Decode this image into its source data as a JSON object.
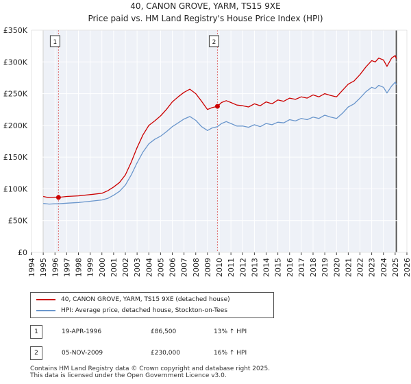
{
  "title_line1": "40, CANON GROVE, YARM, TS15 9XE",
  "title_line2": "Price paid vs. HM Land Registry's House Price Index (HPI)",
  "chart_data": {
    "type": "line",
    "xlim": [
      1994,
      2026
    ],
    "ylim": [
      0,
      350000
    ],
    "y_ticks": [
      0,
      50000,
      100000,
      150000,
      200000,
      250000,
      300000,
      350000
    ],
    "y_tick_labels": [
      "£0",
      "£50K",
      "£100K",
      "£150K",
      "£200K",
      "£250K",
      "£300K",
      "£350K"
    ],
    "x_ticks": [
      1994,
      1995,
      1996,
      1997,
      1998,
      1999,
      2000,
      2001,
      2002,
      2003,
      2004,
      2005,
      2006,
      2007,
      2008,
      2009,
      2010,
      2011,
      2012,
      2013,
      2014,
      2015,
      2016,
      2017,
      2018,
      2019,
      2020,
      2021,
      2022,
      2023,
      2024,
      2025,
      2026
    ],
    "x_tick_labels": [
      "1994",
      "1995",
      "1996",
      "1997",
      "1998",
      "1999",
      "2000",
      "2001",
      "2002",
      "2003",
      "2004",
      "2005",
      "2006",
      "2007",
      "2008",
      "2009",
      "2010",
      "2011",
      "2012",
      "2013",
      "2014",
      "2015",
      "2016",
      "2017",
      "2018",
      "2019",
      "2020",
      "2021",
      "2022",
      "2023",
      "2024",
      "2025",
      "2026"
    ],
    "data_range": [
      1995,
      2025.1
    ],
    "series": [
      {
        "name": "40, CANON GROVE, YARM, TS15 9XE (detached house)",
        "color": "#cc0000",
        "x": [
          1995,
          1995.5,
          1996,
          1996.3,
          1997,
          1998,
          1999,
          2000,
          2000.5,
          2001,
          2001.5,
          2002,
          2002.5,
          2003,
          2003.5,
          2004,
          2004.5,
          2005,
          2005.5,
          2006,
          2006.5,
          2007,
          2007.5,
          2008,
          2008.5,
          2009,
          2009.4,
          2009.85,
          2010.2,
          2010.6,
          2011,
          2011.5,
          2012,
          2012.5,
          2013,
          2013.5,
          2014,
          2014.5,
          2015,
          2015.5,
          2016,
          2016.5,
          2017,
          2017.5,
          2018,
          2018.5,
          2019,
          2019.5,
          2020,
          2020.5,
          2021,
          2021.5,
          2022,
          2022.5,
          2023,
          2023.3,
          2023.6,
          2024,
          2024.3,
          2024.7,
          2025,
          2025.1
        ],
        "y": [
          88000,
          86000,
          87000,
          86500,
          88000,
          89000,
          91000,
          93000,
          97000,
          103000,
          110000,
          122000,
          142000,
          165000,
          185000,
          200000,
          207000,
          215000,
          225000,
          237000,
          245000,
          252000,
          257000,
          250000,
          238000,
          225000,
          228000,
          230000,
          236000,
          239000,
          236000,
          232000,
          231000,
          229000,
          234000,
          231000,
          237000,
          234000,
          240000,
          238000,
          243000,
          241000,
          245000,
          243000,
          248000,
          245000,
          250000,
          247000,
          245000,
          255000,
          265000,
          270000,
          280000,
          292000,
          302000,
          300000,
          306000,
          303000,
          293000,
          306000,
          310000,
          305000
        ]
      },
      {
        "name": "HPI: Average price, detached house, Stockton-on-Tees",
        "color": "#6a96cc",
        "x": [
          1995,
          1995.5,
          1996,
          1996.3,
          1997,
          1998,
          1999,
          2000,
          2000.5,
          2001,
          2001.5,
          2002,
          2002.5,
          2003,
          2003.5,
          2004,
          2004.5,
          2005,
          2005.5,
          2006,
          2006.5,
          2007,
          2007.5,
          2008,
          2008.5,
          2009,
          2009.4,
          2009.85,
          2010.2,
          2010.6,
          2011,
          2011.5,
          2012,
          2012.5,
          2013,
          2013.5,
          2014,
          2014.5,
          2015,
          2015.5,
          2016,
          2016.5,
          2017,
          2017.5,
          2018,
          2018.5,
          2019,
          2019.5,
          2020,
          2020.5,
          2021,
          2021.5,
          2022,
          2022.5,
          2023,
          2023.3,
          2023.6,
          2024,
          2024.3,
          2024.7,
          2025,
          2025.1
        ],
        "y": [
          77000,
          76000,
          76500,
          76500,
          77500,
          78500,
          80500,
          82500,
          85000,
          90000,
          96000,
          106000,
          122000,
          141000,
          158000,
          171000,
          178000,
          183000,
          190000,
          198000,
          204000,
          210000,
          214000,
          208000,
          198000,
          192000,
          196000,
          198000,
          203000,
          206000,
          203000,
          199000,
          199000,
          197000,
          201000,
          198000,
          203000,
          201000,
          205000,
          204000,
          209000,
          207000,
          211000,
          209000,
          213000,
          211000,
          216000,
          213000,
          211000,
          219000,
          229000,
          234000,
          243000,
          253000,
          260000,
          258000,
          263000,
          260000,
          251000,
          262000,
          268000,
          264000
        ]
      }
    ],
    "sales": [
      {
        "label": "1",
        "x": 1996.3,
        "price": 86500
      },
      {
        "label": "2",
        "x": 2009.85,
        "price": 230000
      }
    ]
  },
  "legend": {
    "series1_label": "40, CANON GROVE, YARM, TS15 9XE (detached house)",
    "series2_label": "HPI: Average price, detached house, Stockton-on-Tees",
    "series1_color": "#cc0000",
    "series2_color": "#6a96cc"
  },
  "sales_table": [
    {
      "badge": "1",
      "date": "19-APR-1996",
      "price": "£86,500",
      "hpi": "13% ↑ HPI"
    },
    {
      "badge": "2",
      "date": "05-NOV-2009",
      "price": "£230,000",
      "hpi": "16% ↑ HPI"
    }
  ],
  "footer": {
    "line1": "Contains HM Land Registry data © Crown copyright and database right 2025.",
    "line2": "This data is licensed under the Open Government Licence v3.0."
  }
}
